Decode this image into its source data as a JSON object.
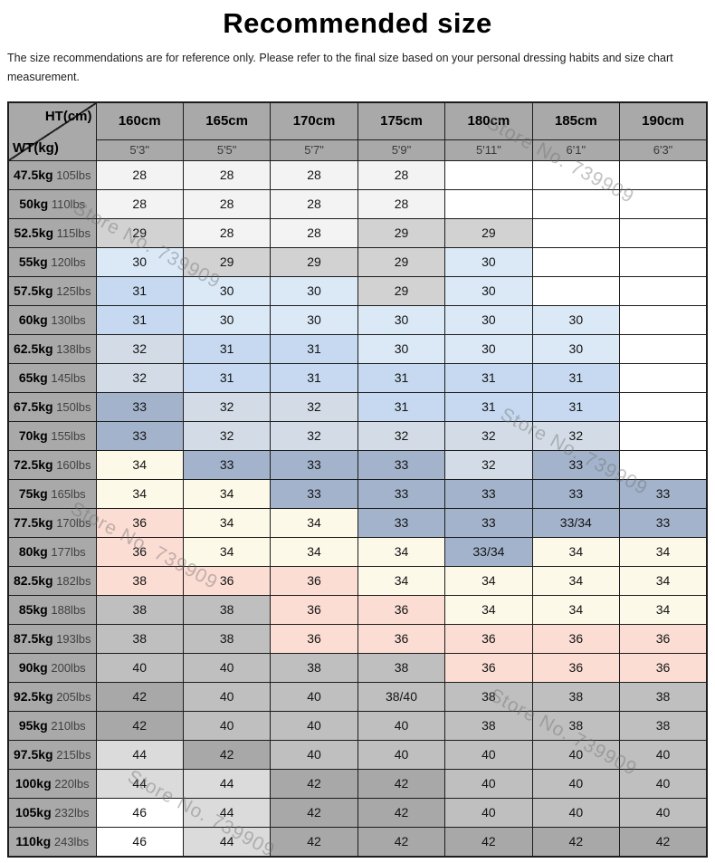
{
  "page": {
    "title": "Recommended size",
    "subtitle": "The size recommendations are for reference only. Please refer to the final size based on your personal dressing habits and size chart measurement.",
    "watermark_text": "Store No. 739909"
  },
  "chart_data": {
    "type": "table",
    "title": "Recommended size",
    "corner_top_right": "HT(cm)",
    "corner_bottom_left": "WT(kg)",
    "height_headers_cm": [
      "160cm",
      "165cm",
      "170cm",
      "175cm",
      "180cm",
      "185cm",
      "190cm"
    ],
    "height_headers_ft": [
      "5'3\"",
      "5'5\"",
      "5'7\"",
      "5'9\"",
      "5'11\"",
      "6'1\"",
      "6'3\""
    ],
    "header_bg": "#a9a9a9",
    "palette": {
      "w": "#ffffff",
      "vl": "#f3f3f3",
      "lg": "#d2d2d2",
      "lb": "#dbe9f7",
      "mb": "#c6d9f0",
      "st": "#d3dce6",
      "sl": "#a3b3cb",
      "cr": "#fdf9e9",
      "pk": "#fbddd4",
      "gr": "#bfbfbf",
      "dg": "#a8a8a8",
      "llg": "#dbdbdb"
    },
    "weight_rows": [
      {
        "kg": "47.5kg",
        "lbs": "105lbs",
        "sizes": [
          "28",
          "28",
          "28",
          "28",
          "",
          "",
          ""
        ],
        "cell_colors": [
          "vl",
          "vl",
          "vl",
          "vl",
          "w",
          "w",
          "w"
        ]
      },
      {
        "kg": "50kg",
        "lbs": "110lbs",
        "sizes": [
          "28",
          "28",
          "28",
          "28",
          "",
          "",
          ""
        ],
        "cell_colors": [
          "vl",
          "vl",
          "vl",
          "vl",
          "w",
          "w",
          "w"
        ]
      },
      {
        "kg": "52.5kg",
        "lbs": "115lbs",
        "sizes": [
          "29",
          "28",
          "28",
          "29",
          "29",
          "",
          ""
        ],
        "cell_colors": [
          "lg",
          "vl",
          "vl",
          "lg",
          "lg",
          "w",
          "w"
        ]
      },
      {
        "kg": "55kg",
        "lbs": "120lbs",
        "sizes": [
          "30",
          "29",
          "29",
          "29",
          "30",
          "",
          ""
        ],
        "cell_colors": [
          "lb",
          "lg",
          "lg",
          "lg",
          "lb",
          "w",
          "w"
        ]
      },
      {
        "kg": "57.5kg",
        "lbs": "125lbs",
        "sizes": [
          "31",
          "30",
          "30",
          "29",
          "30",
          "",
          ""
        ],
        "cell_colors": [
          "mb",
          "lb",
          "lb",
          "lg",
          "lb",
          "w",
          "w"
        ]
      },
      {
        "kg": "60kg",
        "lbs": "130lbs",
        "sizes": [
          "31",
          "30",
          "30",
          "30",
          "30",
          "30",
          ""
        ],
        "cell_colors": [
          "mb",
          "lb",
          "lb",
          "lb",
          "lb",
          "lb",
          "w"
        ]
      },
      {
        "kg": "62.5kg",
        "lbs": "138lbs",
        "sizes": [
          "32",
          "31",
          "31",
          "30",
          "30",
          "30",
          ""
        ],
        "cell_colors": [
          "st",
          "mb",
          "mb",
          "lb",
          "lb",
          "lb",
          "w"
        ]
      },
      {
        "kg": "65kg",
        "lbs": "145lbs",
        "sizes": [
          "32",
          "31",
          "31",
          "31",
          "31",
          "31",
          ""
        ],
        "cell_colors": [
          "st",
          "mb",
          "mb",
          "mb",
          "mb",
          "mb",
          "w"
        ]
      },
      {
        "kg": "67.5kg",
        "lbs": "150lbs",
        "sizes": [
          "33",
          "32",
          "32",
          "31",
          "31",
          "31",
          ""
        ],
        "cell_colors": [
          "sl",
          "st",
          "st",
          "mb",
          "mb",
          "mb",
          "w"
        ]
      },
      {
        "kg": "70kg",
        "lbs": "155lbs",
        "sizes": [
          "33",
          "32",
          "32",
          "32",
          "32",
          "32",
          ""
        ],
        "cell_colors": [
          "sl",
          "st",
          "st",
          "st",
          "st",
          "st",
          "w"
        ]
      },
      {
        "kg": "72.5kg",
        "lbs": "160lbs",
        "sizes": [
          "34",
          "33",
          "33",
          "33",
          "32",
          "33",
          ""
        ],
        "cell_colors": [
          "cr",
          "sl",
          "sl",
          "sl",
          "st",
          "sl",
          "w"
        ]
      },
      {
        "kg": "75kg",
        "lbs": "165lbs",
        "sizes": [
          "34",
          "34",
          "33",
          "33",
          "33",
          "33",
          "33"
        ],
        "cell_colors": [
          "cr",
          "cr",
          "sl",
          "sl",
          "sl",
          "sl",
          "sl"
        ]
      },
      {
        "kg": "77.5kg",
        "lbs": "170lbs",
        "sizes": [
          "36",
          "34",
          "34",
          "33",
          "33",
          "33/34",
          "33"
        ],
        "cell_colors": [
          "pk",
          "cr",
          "cr",
          "sl",
          "sl",
          "sl",
          "sl"
        ]
      },
      {
        "kg": "80kg",
        "lbs": "177lbs",
        "sizes": [
          "36",
          "34",
          "34",
          "34",
          "33/34",
          "34",
          "34"
        ],
        "cell_colors": [
          "pk",
          "cr",
          "cr",
          "cr",
          "sl",
          "cr",
          "cr"
        ]
      },
      {
        "kg": "82.5kg",
        "lbs": "182lbs",
        "sizes": [
          "38",
          "36",
          "36",
          "34",
          "34",
          "34",
          "34"
        ],
        "cell_colors": [
          "pk",
          "pk",
          "pk",
          "cr",
          "cr",
          "cr",
          "cr"
        ]
      },
      {
        "kg": "85kg",
        "lbs": "188lbs",
        "sizes": [
          "38",
          "38",
          "36",
          "36",
          "34",
          "34",
          "34"
        ],
        "cell_colors": [
          "gr",
          "gr",
          "pk",
          "pk",
          "cr",
          "cr",
          "cr"
        ]
      },
      {
        "kg": "87.5kg",
        "lbs": "193lbs",
        "sizes": [
          "38",
          "38",
          "36",
          "36",
          "36",
          "36",
          "36"
        ],
        "cell_colors": [
          "gr",
          "gr",
          "pk",
          "pk",
          "pk",
          "pk",
          "pk"
        ]
      },
      {
        "kg": "90kg",
        "lbs": "200lbs",
        "sizes": [
          "40",
          "40",
          "38",
          "38",
          "36",
          "36",
          "36"
        ],
        "cell_colors": [
          "gr",
          "gr",
          "gr",
          "gr",
          "pk",
          "pk",
          "pk"
        ]
      },
      {
        "kg": "92.5kg",
        "lbs": "205lbs",
        "sizes": [
          "42",
          "40",
          "40",
          "38/40",
          "38",
          "38",
          "38"
        ],
        "cell_colors": [
          "dg",
          "gr",
          "gr",
          "gr",
          "gr",
          "gr",
          "gr"
        ]
      },
      {
        "kg": "95kg",
        "lbs": "210lbs",
        "sizes": [
          "42",
          "40",
          "40",
          "40",
          "38",
          "38",
          "38"
        ],
        "cell_colors": [
          "dg",
          "gr",
          "gr",
          "gr",
          "gr",
          "gr",
          "gr"
        ]
      },
      {
        "kg": "97.5kg",
        "lbs": "215lbs",
        "sizes": [
          "44",
          "42",
          "40",
          "40",
          "40",
          "40",
          "40"
        ],
        "cell_colors": [
          "llg",
          "dg",
          "gr",
          "gr",
          "gr",
          "gr",
          "gr"
        ]
      },
      {
        "kg": "100kg",
        "lbs": "220lbs",
        "sizes": [
          "44",
          "44",
          "42",
          "42",
          "40",
          "40",
          "40"
        ],
        "cell_colors": [
          "llg",
          "llg",
          "dg",
          "dg",
          "gr",
          "gr",
          "gr"
        ]
      },
      {
        "kg": "105kg",
        "lbs": "232lbs",
        "sizes": [
          "46",
          "44",
          "42",
          "42",
          "40",
          "40",
          "40"
        ],
        "cell_colors": [
          "w",
          "llg",
          "dg",
          "dg",
          "gr",
          "gr",
          "gr"
        ]
      },
      {
        "kg": "110kg",
        "lbs": "243lbs",
        "sizes": [
          "46",
          "44",
          "42",
          "42",
          "42",
          "42",
          "42"
        ],
        "cell_colors": [
          "w",
          "llg",
          "dg",
          "dg",
          "dg",
          "dg",
          "dg"
        ]
      }
    ]
  }
}
